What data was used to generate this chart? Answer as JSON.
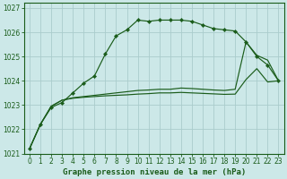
{
  "title": "Graphe pression niveau de la mer (hPa)",
  "bg_color": "#cce8e8",
  "grid_color": "#aacccc",
  "line_color": "#1a5c1a",
  "xlim": [
    -0.5,
    23.5
  ],
  "ylim": [
    1021.0,
    1027.2
  ],
  "xticks": [
    0,
    1,
    2,
    3,
    4,
    5,
    6,
    7,
    8,
    9,
    10,
    11,
    12,
    13,
    14,
    15,
    16,
    17,
    18,
    19,
    20,
    21,
    22,
    23
  ],
  "yticks": [
    1021,
    1022,
    1023,
    1024,
    1025,
    1026,
    1027
  ],
  "s1_x": [
    0,
    1,
    2,
    3,
    4,
    5,
    6,
    7,
    8,
    9,
    10,
    11,
    12,
    13,
    14,
    15,
    16,
    17,
    18,
    19,
    20,
    21,
    22,
    23
  ],
  "s1_y": [
    1021.2,
    1022.2,
    1022.9,
    1023.1,
    1023.5,
    1023.9,
    1024.2,
    1025.1,
    1025.85,
    1026.1,
    1026.5,
    1026.45,
    1026.5,
    1026.5,
    1026.5,
    1026.45,
    1026.3,
    1026.15,
    1026.1,
    1026.05,
    1025.6,
    1025.0,
    1024.65,
    1024.0
  ],
  "s2_x": [
    0,
    1,
    2,
    3,
    4,
    5,
    6,
    7,
    8,
    9,
    10,
    11,
    12,
    13,
    14,
    15,
    16,
    17,
    18,
    19,
    20,
    21,
    22,
    23
  ],
  "s2_y": [
    1021.2,
    1022.2,
    1022.95,
    1023.2,
    1023.3,
    1023.35,
    1023.4,
    1023.45,
    1023.5,
    1023.55,
    1023.6,
    1023.62,
    1023.65,
    1023.65,
    1023.7,
    1023.68,
    1023.65,
    1023.62,
    1023.6,
    1023.65,
    1025.6,
    1025.05,
    1024.85,
    1024.0
  ],
  "s3_x": [
    0,
    1,
    2,
    3,
    4,
    5,
    6,
    7,
    8,
    9,
    10,
    11,
    12,
    13,
    14,
    15,
    16,
    17,
    18,
    19,
    20,
    21,
    22,
    23
  ],
  "s3_y": [
    1021.2,
    1022.2,
    1022.95,
    1023.2,
    1023.28,
    1023.32,
    1023.35,
    1023.38,
    1023.4,
    1023.42,
    1023.45,
    1023.47,
    1023.5,
    1023.5,
    1023.52,
    1023.5,
    1023.48,
    1023.46,
    1023.44,
    1023.45,
    1024.05,
    1024.5,
    1023.95,
    1024.0
  ],
  "title_fontsize": 6.5,
  "tick_fontsize": 5.5
}
